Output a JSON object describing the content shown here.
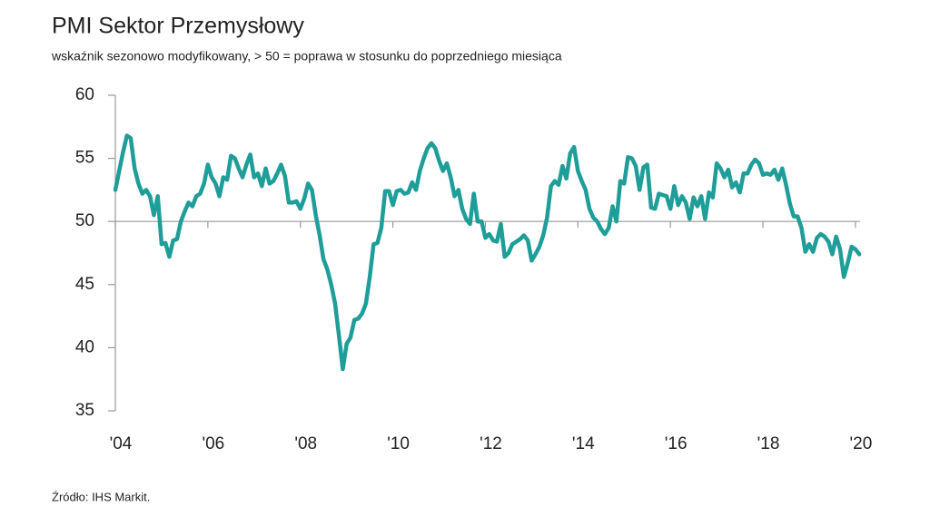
{
  "chart_data": {
    "type": "line",
    "title": "PMI Sektor Przemysłowy",
    "subtitle": "wskaźnik sezonowo modyfikowany, > 50 = poprawa w stosunku do poprzedniego miesiąca",
    "source": "Źródło:  IHS Markit.",
    "color": "#1f9e99",
    "xlim": [
      2004,
      2020.1
    ],
    "ylim": [
      35,
      60
    ],
    "yticks": [
      35,
      40,
      45,
      50,
      55,
      60
    ],
    "xticks": [
      {
        "value": 2004,
        "label": "'04"
      },
      {
        "value": 2006,
        "label": "'06"
      },
      {
        "value": 2008,
        "label": "'08"
      },
      {
        "value": 2010,
        "label": "'10"
      },
      {
        "value": 2012,
        "label": "'12"
      },
      {
        "value": 2014,
        "label": "'14"
      },
      {
        "value": 2016,
        "label": "'16"
      },
      {
        "value": 2018,
        "label": "'18"
      },
      {
        "value": 2020,
        "label": "'20"
      }
    ],
    "x": [
      2004,
      2004.083,
      2004.167,
      2004.25,
      2004.333,
      2004.417,
      2004.5,
      2004.583,
      2004.667,
      2004.75,
      2004.833,
      2004.917,
      2005,
      2005.083,
      2005.167,
      2005.25,
      2005.333,
      2005.417,
      2005.5,
      2005.583,
      2005.667,
      2005.75,
      2005.833,
      2005.917,
      2006,
      2006.083,
      2006.167,
      2006.25,
      2006.333,
      2006.417,
      2006.5,
      2006.583,
      2006.667,
      2006.75,
      2006.833,
      2006.917,
      2007,
      2007.083,
      2007.167,
      2007.25,
      2007.333,
      2007.417,
      2007.5,
      2007.583,
      2007.667,
      2007.75,
      2007.833,
      2007.917,
      2008,
      2008.083,
      2008.167,
      2008.25,
      2008.333,
      2008.417,
      2008.5,
      2008.583,
      2008.667,
      2008.75,
      2008.833,
      2008.917,
      2009,
      2009.083,
      2009.167,
      2009.25,
      2009.333,
      2009.417,
      2009.5,
      2009.583,
      2009.667,
      2009.75,
      2009.833,
      2009.917,
      2010,
      2010.083,
      2010.167,
      2010.25,
      2010.333,
      2010.417,
      2010.5,
      2010.583,
      2010.667,
      2010.75,
      2010.833,
      2010.917,
      2011,
      2011.083,
      2011.167,
      2011.25,
      2011.333,
      2011.417,
      2011.5,
      2011.583,
      2011.667,
      2011.75,
      2011.833,
      2011.917,
      2012,
      2012.083,
      2012.167,
      2012.25,
      2012.333,
      2012.417,
      2012.5,
      2012.583,
      2012.667,
      2012.75,
      2012.833,
      2012.917,
      2013,
      2013.083,
      2013.167,
      2013.25,
      2013.333,
      2013.417,
      2013.5,
      2013.583,
      2013.667,
      2013.75,
      2013.833,
      2013.917,
      2014,
      2014.083,
      2014.167,
      2014.25,
      2014.333,
      2014.417,
      2014.5,
      2014.583,
      2014.667,
      2014.75,
      2014.833,
      2014.917,
      2015,
      2015.083,
      2015.167,
      2015.25,
      2015.333,
      2015.417,
      2015.5,
      2015.583,
      2015.667,
      2015.75,
      2015.833,
      2015.917,
      2016,
      2016.083,
      2016.167,
      2016.25,
      2016.333,
      2016.417,
      2016.5,
      2016.583,
      2016.667,
      2016.75,
      2016.833,
      2016.917,
      2017,
      2017.083,
      2017.167,
      2017.25,
      2017.333,
      2017.417,
      2017.5,
      2017.583,
      2017.667,
      2017.75,
      2017.833,
      2017.917,
      2018,
      2018.083,
      2018.167,
      2018.25,
      2018.333,
      2018.417,
      2018.5,
      2018.583,
      2018.667,
      2018.75,
      2018.833,
      2018.917,
      2019,
      2019.083,
      2019.167,
      2019.25,
      2019.333,
      2019.417,
      2019.5,
      2019.583,
      2019.667,
      2019.75,
      2019.833,
      2019.917,
      2020,
      2020.083
    ],
    "values": [
      52.5,
      54.0,
      55.5,
      56.8,
      56.6,
      54.2,
      53.0,
      52.2,
      52.5,
      52.0,
      50.5,
      52.0,
      48.2,
      48.3,
      47.2,
      48.5,
      48.6,
      50.0,
      50.8,
      51.5,
      51.2,
      52.0,
      52.2,
      53.0,
      54.5,
      53.5,
      53.0,
      52.0,
      53.5,
      53.3,
      55.2,
      55.0,
      54.2,
      53.5,
      54.5,
      55.3,
      53.5,
      53.8,
      52.8,
      54.2,
      53.0,
      53.2,
      53.8,
      54.5,
      53.6,
      51.5,
      51.5,
      51.6,
      51.0,
      51.8,
      53.0,
      52.5,
      50.5,
      48.9,
      47.0,
      46.2,
      45.0,
      43.5,
      41.0,
      38.3,
      40.3,
      40.8,
      42.2,
      42.3,
      42.7,
      43.5,
      45.6,
      48.2,
      48.3,
      49.5,
      52.4,
      52.4,
      51.3,
      52.4,
      52.5,
      52.2,
      52.3,
      53.1,
      52.5,
      54.0,
      55.0,
      55.8,
      56.2,
      55.8,
      54.8,
      54.0,
      54.6,
      53.5,
      52.0,
      52.5,
      51.0,
      50.2,
      49.8,
      52.2,
      50.0,
      50.0,
      48.7,
      49.0,
      48.5,
      48.4,
      49.8,
      47.2,
      47.5,
      48.2,
      48.4,
      48.6,
      48.9,
      48.5,
      46.9,
      47.4,
      48.0,
      48.9,
      50.3,
      52.8,
      53.2,
      52.9,
      54.4,
      53.4,
      55.4,
      55.9,
      54.0,
      53.2,
      52.5,
      51.0,
      50.3,
      50.0,
      49.4,
      49.0,
      49.5,
      51.2,
      50.0,
      53.2,
      53.0,
      55.1,
      55.0,
      54.4,
      52.5,
      54.3,
      54.5,
      51.1,
      51.0,
      52.2,
      52.1,
      52.0,
      51.0,
      52.8,
      51.3,
      52.0,
      51.5,
      50.2,
      51.9,
      51.2,
      52.0,
      50.2,
      52.3,
      51.9,
      54.6,
      54.2,
      53.5,
      54.1,
      52.7,
      53.1,
      52.3,
      53.8,
      53.8,
      54.5,
      54.9,
      54.6,
      53.7,
      53.8,
      53.7,
      54.1,
      53.3,
      54.2,
      52.9,
      51.4,
      50.4,
      50.4,
      49.5,
      47.6,
      48.2,
      47.6,
      48.7,
      49.0,
      48.8,
      48.4,
      47.4,
      48.8,
      47.8,
      45.6,
      46.7,
      48.0,
      47.8,
      47.4
    ]
  }
}
